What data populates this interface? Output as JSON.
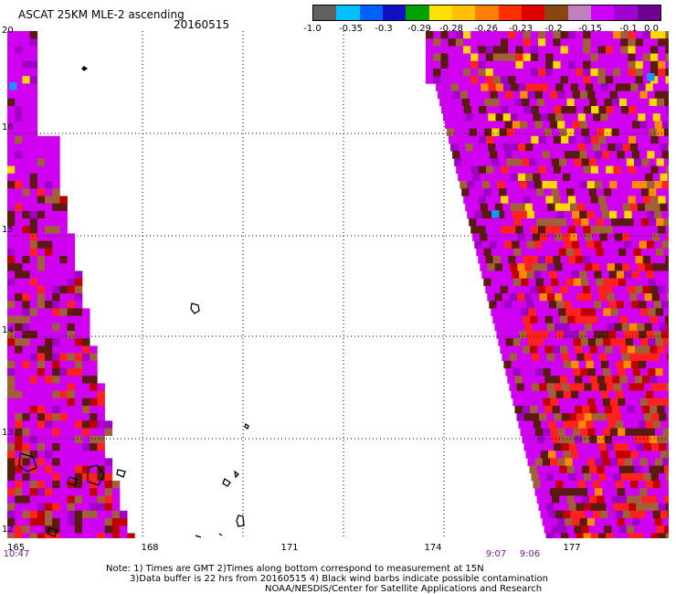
{
  "header": {
    "title": "ASCAT 25KM MLE-2 ascending",
    "date": "20160515"
  },
  "colorbar": {
    "colors": [
      "#606060",
      "#00c0ff",
      "#0060ff",
      "#1010c0",
      "#00a000",
      "#ffe000",
      "#ffc000",
      "#ff8000",
      "#ff3000",
      "#e00000",
      "#8b4513",
      "#c080c0",
      "#d000ff",
      "#a000d0",
      "#700090"
    ],
    "labels": [
      "-1.0",
      "-0.35",
      "-0.3",
      "-0.29",
      "-0.28",
      "-0.26",
      "-0.23",
      "-0.2",
      "-0.15",
      "-0.1",
      "0.0"
    ]
  },
  "map": {
    "lat_labels": [
      "20",
      "16",
      "15",
      "14",
      "13",
      "12"
    ],
    "lon_labels": [
      "165",
      "168",
      "171",
      "174",
      "177"
    ],
    "times": [
      "10:47",
      "9:07",
      "9:06"
    ],
    "swath_colors": {
      "magenta": "#d000f0",
      "purple": "#a000c8",
      "dark": "#5a1a10",
      "brown": "#a0603a",
      "red": "#ff2020",
      "darkred": "#c00000",
      "yellow": "#ffd800",
      "orange": "#ff8c00",
      "blue": "#1e90ff"
    }
  },
  "notes": {
    "line1": "Note: 1) Times are GMT 2)Times along bottom correspond to measurement at 15N",
    "line2": "3)Data buffer is 22 hrs from 20160515 4) Black wind barbs indicate possible contamination",
    "line3": "NOAA/NESDIS/Center for Satellite Applications and Research"
  }
}
